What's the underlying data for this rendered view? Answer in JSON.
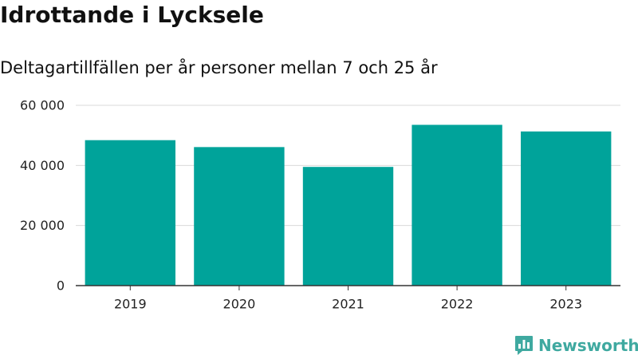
{
  "title": "Idrottande i Lycksele",
  "subtitle": "Deltagartillfällen per år personer mellan 7 och 25 år",
  "brand": {
    "name": "Newsworthy",
    "color": "#3fa9a0"
  },
  "colors": {
    "bar": "#00a39a",
    "grid": "#d9d9d9",
    "axis": "#333333"
  },
  "chart_data": {
    "type": "bar",
    "categories": [
      "2019",
      "2020",
      "2021",
      "2022",
      "2023"
    ],
    "values": [
      48400,
      46100,
      39500,
      53500,
      51300
    ],
    "ylim": [
      0,
      60000
    ],
    "yticks": [
      0,
      20000,
      40000,
      60000
    ],
    "ytick_labels": [
      "0",
      "20 000",
      "40 000",
      "60 000"
    ],
    "grid": true,
    "legend": "none"
  }
}
